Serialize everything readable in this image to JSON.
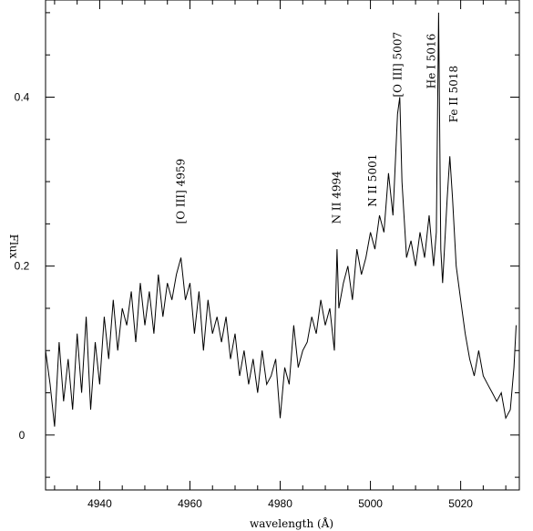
{
  "chart_data": {
    "type": "line",
    "title": "",
    "xlabel": "wavelength (Å)",
    "ylabel": "Flux",
    "xlim": [
      4928,
      5033
    ],
    "ylim": [
      -0.065,
      0.515
    ],
    "grid": false,
    "legend": "none",
    "line_color": "#000000",
    "x_ticks": [
      {
        "value": 4940,
        "label": "4940"
      },
      {
        "value": 4960,
        "label": "4960"
      },
      {
        "value": 4980,
        "label": "4980"
      },
      {
        "value": 5000,
        "label": "5000"
      },
      {
        "value": 5020,
        "label": "5020"
      }
    ],
    "y_ticks": [
      {
        "value": 0,
        "label": "0"
      },
      {
        "value": 0.2,
        "label": "0.2"
      },
      {
        "value": 0.4,
        "label": "0.4"
      }
    ],
    "annotations": [
      {
        "text": "[O III] 4959",
        "x": 4958,
        "y": 0.25
      },
      {
        "text": "N II 4994",
        "x": 4992.5,
        "y": 0.25
      },
      {
        "text": "N II 5001",
        "x": 5000.5,
        "y": 0.27
      },
      {
        "text": "[O III] 5007",
        "x": 5006,
        "y": 0.4
      },
      {
        "text": "He I 5016",
        "x": 5013.5,
        "y": 0.41
      },
      {
        "text": "Fe II 5018",
        "x": 5018.5,
        "y": 0.37
      }
    ],
    "series": [
      {
        "x": [
          4928,
          4929,
          4930,
          4931,
          4932,
          4933,
          4934,
          4935,
          4936,
          4937,
          4938,
          4939,
          4940,
          4941,
          4942,
          4943,
          4944,
          4945,
          4946,
          4947,
          4948,
          4949,
          4950,
          4951,
          4952,
          4953,
          4954,
          4955,
          4956,
          4957,
          4958,
          4959,
          4960,
          4961,
          4962,
          4963,
          4964,
          4965,
          4966,
          4967,
          4968,
          4969,
          4970,
          4971,
          4972,
          4973,
          4974,
          4975,
          4976,
          4977,
          4978,
          4979,
          4980,
          4981,
          4982,
          4983,
          4984,
          4985,
          4986,
          4987,
          4988,
          4989,
          4990,
          4991,
          4992,
          4992.6,
          4993,
          4994,
          4995,
          4996,
          4997,
          4998,
          4999,
          5000,
          5001,
          5002,
          5003,
          5004,
          5005,
          5006,
          5006.5,
          5007,
          5008,
          5009,
          5010,
          5011,
          5012,
          5013,
          5014,
          5014.6,
          5015.1,
          5015.6,
          5016,
          5017,
          5017.6,
          5018.2,
          5019,
          5020,
          5021,
          5022,
          5023,
          5024,
          5025,
          5026,
          5027,
          5028,
          5029,
          5030,
          5031,
          5031.8,
          5032.3
        ],
        "values": [
          0.1,
          0.06,
          0.01,
          0.11,
          0.04,
          0.09,
          0.03,
          0.12,
          0.05,
          0.14,
          0.03,
          0.11,
          0.06,
          0.14,
          0.09,
          0.16,
          0.1,
          0.15,
          0.13,
          0.17,
          0.11,
          0.18,
          0.13,
          0.17,
          0.12,
          0.19,
          0.14,
          0.18,
          0.16,
          0.19,
          0.21,
          0.16,
          0.18,
          0.12,
          0.17,
          0.1,
          0.16,
          0.12,
          0.14,
          0.11,
          0.14,
          0.09,
          0.12,
          0.07,
          0.1,
          0.06,
          0.09,
          0.05,
          0.1,
          0.06,
          0.07,
          0.09,
          0.02,
          0.08,
          0.06,
          0.13,
          0.08,
          0.1,
          0.11,
          0.14,
          0.12,
          0.16,
          0.13,
          0.15,
          0.1,
          0.22,
          0.15,
          0.18,
          0.2,
          0.16,
          0.22,
          0.19,
          0.21,
          0.24,
          0.22,
          0.26,
          0.24,
          0.31,
          0.26,
          0.38,
          0.4,
          0.3,
          0.21,
          0.23,
          0.2,
          0.24,
          0.21,
          0.26,
          0.2,
          0.24,
          0.5,
          0.22,
          0.18,
          0.28,
          0.33,
          0.28,
          0.2,
          0.16,
          0.12,
          0.09,
          0.07,
          0.1,
          0.07,
          0.06,
          0.05,
          0.04,
          0.05,
          0.02,
          0.03,
          0.08,
          0.13
        ]
      }
    ]
  }
}
